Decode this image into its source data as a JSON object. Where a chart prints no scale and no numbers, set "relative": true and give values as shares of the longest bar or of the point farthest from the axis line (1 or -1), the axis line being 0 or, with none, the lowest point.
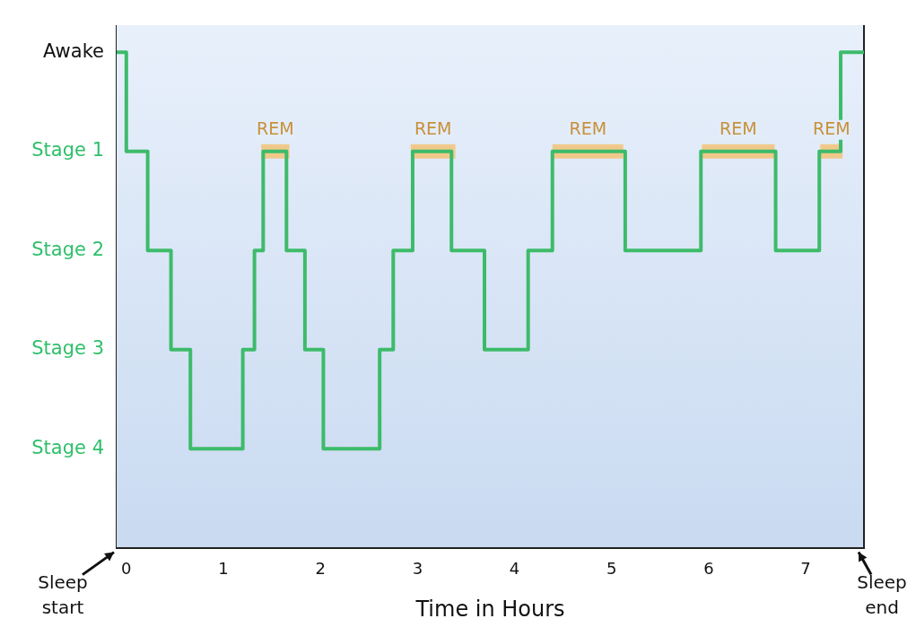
{
  "chart_data": {
    "type": "step",
    "relative": true,
    "xlabel": "Time in Hours",
    "series": [
      {
        "color": "#3dbb6a",
        "x": [
          -0.1,
          0,
          0.22,
          0.46,
          0.66,
          1.2,
          1.32,
          1.41,
          1.65,
          1.84,
          2.03,
          2.61,
          2.75,
          2.95,
          3.35,
          3.69,
          4.14,
          4.39,
          5.14,
          5.92,
          6.69,
          7.14,
          7.36,
          7.59
        ],
        "values": [
          1,
          0.8,
          0.6,
          0.4,
          0.2,
          0.4,
          0.6,
          0.8,
          0.6,
          0.4,
          0.2,
          0.4,
          0.6,
          0.8,
          0.6,
          0.4,
          0.6,
          0.8,
          0.6,
          0.8,
          0.6,
          0.8,
          1,
          1
        ]
      },
      {
        "type": "line",
        "name": "REM",
        "color": "#f0c98a",
        "x": [
          1.39,
          1.68
        ],
        "values": [
          0.8,
          0.8
        ]
      },
      {
        "type": "line",
        "name": "REM",
        "color": "#f0c98a",
        "x": [
          2.93,
          3.39
        ],
        "values": [
          0.8,
          0.8
        ]
      },
      {
        "type": "line",
        "name": "REM",
        "color": "#f0c98a",
        "x": [
          4.39,
          5.12
        ],
        "values": [
          0.8,
          0.8
        ]
      },
      {
        "type": "line",
        "name": "REM",
        "color": "#f0c98a",
        "x": [
          5.93,
          6.68
        ],
        "values": [
          0.8,
          0.8
        ]
      },
      {
        "type": "line",
        "name": "REM",
        "color": "#f0c98a",
        "x": [
          7.15,
          7.38
        ],
        "values": [
          0.8,
          0.8
        ]
      }
    ],
    "xlim": [
      -0.1,
      7.6
    ],
    "xticks": [
      0,
      1,
      2,
      3,
      4,
      5,
      6,
      7
    ],
    "annotations": [
      "Awake",
      "Stage 1",
      "Stage 2",
      "Stage 3",
      "Stage 4",
      "Sleep start",
      "Sleep end"
    ],
    "grid": false,
    "legend": false,
    "line_style": "solid",
    "marker": "none"
  }
}
